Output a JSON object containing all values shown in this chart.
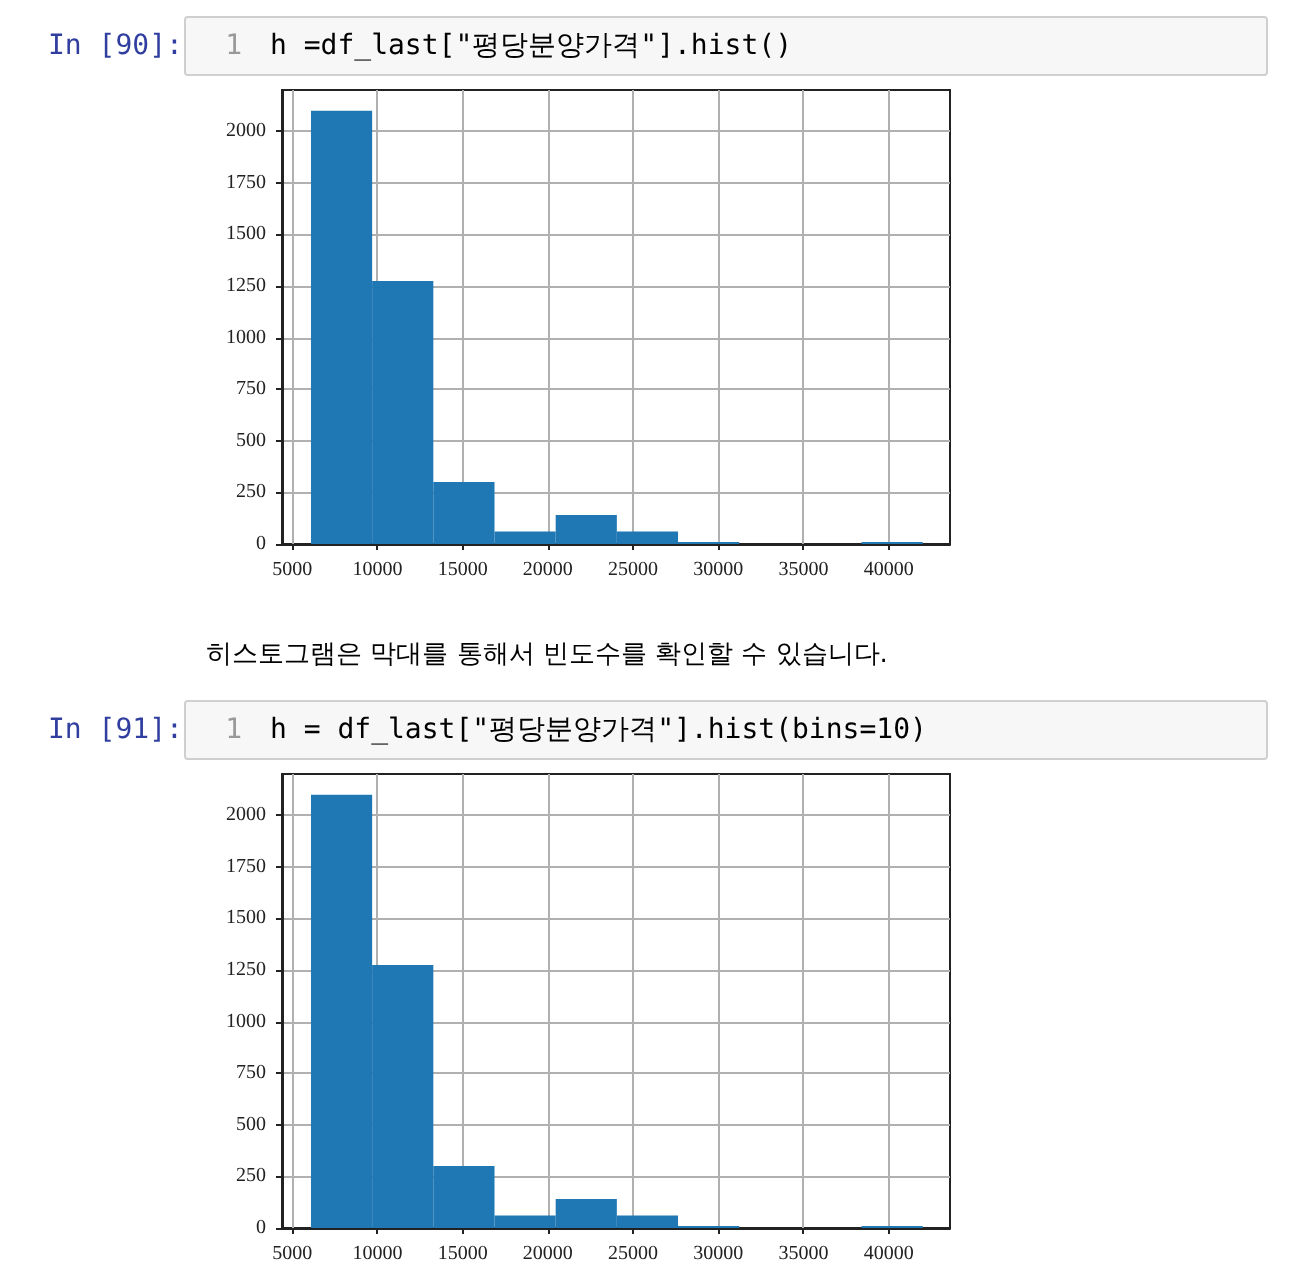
{
  "chart_data": [
    {
      "type": "histogram",
      "title": "h =df_last[\"평당분양가격\"].hist()",
      "annotations": [
        "In [90]:",
        "1"
      ],
      "bins": [
        6100,
        9690,
        13280,
        16870,
        20460,
        24050,
        27640,
        31230,
        34820,
        38410,
        42000
      ],
      "values": [
        2100,
        1275,
        300,
        60,
        140,
        60,
        10,
        0,
        0,
        10
      ],
      "color": "#1f77b4",
      "xlim": [
        4400,
        43600
      ],
      "xticks": [
        5000,
        10000,
        15000,
        20000,
        25000,
        30000,
        35000,
        40000
      ],
      "ylim": [
        0,
        2200
      ],
      "yticks": [
        0,
        250,
        500,
        750,
        1000,
        1250,
        1500,
        1750,
        2000
      ],
      "grid": true
    },
    {
      "type": "histogram",
      "title": "h = df_last[\"평당분양가격\"].hist(bins=10)",
      "annotations": [
        "히스토그램은 막대를 통해서 빈도수를 확인할 수 있습니다.",
        "In [91]:",
        "1"
      ],
      "bins": [
        6100,
        9690,
        13280,
        16870,
        20460,
        24050,
        27640,
        31230,
        34820,
        38410,
        42000
      ],
      "values": [
        2100,
        1275,
        300,
        60,
        140,
        60,
        10,
        0,
        0,
        10
      ],
      "color": "#1f77b4",
      "xlim": [
        4400,
        43600
      ],
      "xticks": [
        5000,
        10000,
        15000,
        20000,
        25000,
        30000,
        35000,
        40000
      ],
      "ylim": [
        0,
        2200
      ],
      "yticks": [
        0,
        250,
        500,
        750,
        1000,
        1250,
        1500,
        1750,
        2000
      ],
      "grid": true
    }
  ]
}
